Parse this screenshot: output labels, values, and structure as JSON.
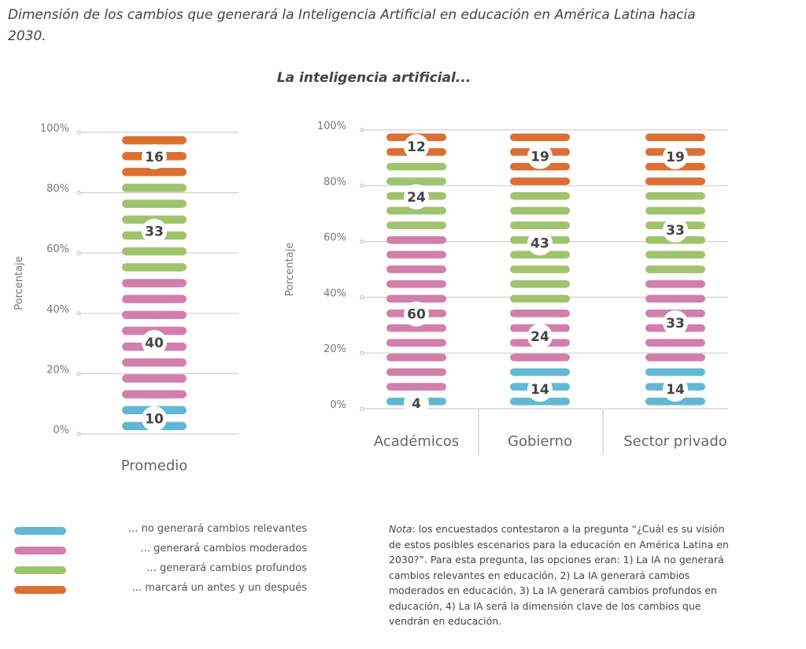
{
  "title": "Dimensión de los cambios que generará la Inteligencia Artificial en educación en América Latina hacia 2030.",
  "subtitle": "La inteligencia artificial...",
  "colors": {
    "no_relevantes": "#62b8d4",
    "moderados": "#d17fab",
    "profundos": "#a0c46e",
    "antes_despues": "#dc6f32"
  },
  "legend": [
    {
      "label": "... no generará cambios relevantes",
      "color": "#62b8d4"
    },
    {
      "label": "... generará cambios moderados",
      "color": "#d17fab"
    },
    {
      "label": "... generará cambios profundos",
      "color": "#a0c46e"
    },
    {
      "label": "... marcará un antes y un después",
      "color": "#dc6f32"
    }
  ],
  "note": {
    "prefix": "Nota",
    "text": ": los encuestados contestaron a la pregunta “¿Cuál es su visión de estos posibles escenarios para la educación en América Latina en 2030?”. Para esta pregunta, las opciones eran: 1) La IA no generará cambios relevantes en educación, 2) La IA generará cambios moderados en educación, 3) La IA generará cambios profundos en educación, 4) La IA será la dimensión clave de los cambios que vendrán en educación."
  },
  "chart_data": [
    {
      "type": "bar",
      "stacked": true,
      "ylabel": "Porcentaje",
      "ylim": [
        0,
        100
      ],
      "yticks": [
        "0%",
        "20%",
        "40%",
        "60%",
        "80%",
        "100%"
      ],
      "categories": [
        "Promedio"
      ],
      "series": [
        {
          "name": "... no generará cambios relevantes",
          "values": [
            10
          ]
        },
        {
          "name": "... generará cambios moderados",
          "values": [
            40
          ]
        },
        {
          "name": "... generará cambios profundos",
          "values": [
            33
          ]
        },
        {
          "name": "... marcará un antes y un después",
          "values": [
            16
          ]
        }
      ]
    },
    {
      "type": "bar",
      "stacked": true,
      "ylabel": "Porcentaje",
      "ylim": [
        0,
        100
      ],
      "yticks": [
        "0%",
        "20%",
        "40%",
        "60%",
        "80%",
        "100%"
      ],
      "categories": [
        "Académicos",
        "Gobierno",
        "Sector privado"
      ],
      "series": [
        {
          "name": "... no generará cambios relevantes",
          "values": [
            4,
            14,
            14
          ]
        },
        {
          "name": "... generará cambios moderados",
          "values": [
            60,
            24,
            33
          ]
        },
        {
          "name": "... generará cambios profundos",
          "values": [
            24,
            43,
            33
          ]
        },
        {
          "name": "... marcará un antes y un después",
          "values": [
            12,
            19,
            19
          ]
        }
      ]
    }
  ]
}
